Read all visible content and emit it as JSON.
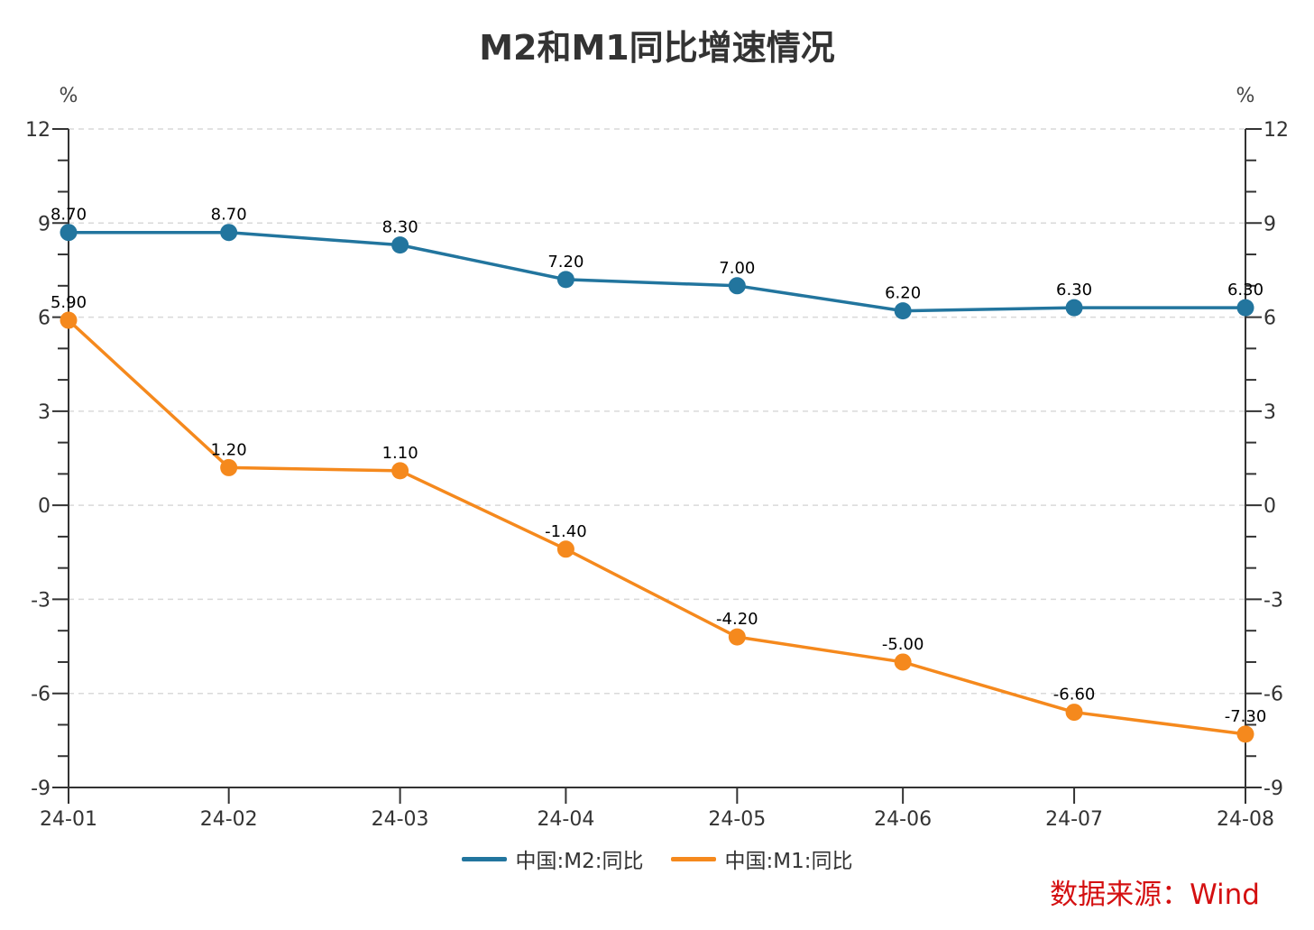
{
  "title": "M2和M1同比增速情况",
  "source": "数据来源：Wind",
  "colors": {
    "m2": "#22759e",
    "m1": "#f5891d",
    "axis": "#333333",
    "grid": "#d9d9d9",
    "label": "#000000"
  },
  "chart_data": {
    "type": "line",
    "title": "M2和M1同比增速情况",
    "xlabel": "",
    "ylabel_left": "%",
    "ylabel_right": "%",
    "x_type": "time",
    "x": [
      "2024-01-31",
      "2024-02-29",
      "2024-03-31",
      "2024-04-30",
      "2024-05-31",
      "2024-06-30",
      "2024-07-31",
      "2024-08-31"
    ],
    "x_tick_labels": [
      "24-01",
      "24-02",
      "24-03",
      "24-04",
      "24-05",
      "24-06",
      "24-07",
      "24-08"
    ],
    "ylim": [
      -9,
      12
    ],
    "y_major_step": 3,
    "y_minor_step": 1,
    "y_ticks": [
      -9,
      -6,
      -3,
      0,
      3,
      6,
      9,
      12
    ],
    "grid": true,
    "legend_position": "bottom-center",
    "series": [
      {
        "name": "中国:M2:同比",
        "color_key": "m2",
        "values": [
          8.7,
          8.7,
          8.3,
          7.2,
          7.0,
          6.2,
          6.3,
          6.3
        ],
        "labels": [
          "8.70",
          "8.70",
          "8.30",
          "7.20",
          "7.00",
          "6.20",
          "6.30",
          "6.30"
        ]
      },
      {
        "name": "中国:M1:同比",
        "color_key": "m1",
        "values": [
          5.9,
          1.2,
          1.1,
          -1.4,
          -4.2,
          -5.0,
          -6.6,
          -7.3
        ],
        "labels": [
          "5.90",
          "1.20",
          "1.10",
          "-1.40",
          "-4.20",
          "-5.00",
          "-6.60",
          "-7.30"
        ]
      }
    ]
  }
}
